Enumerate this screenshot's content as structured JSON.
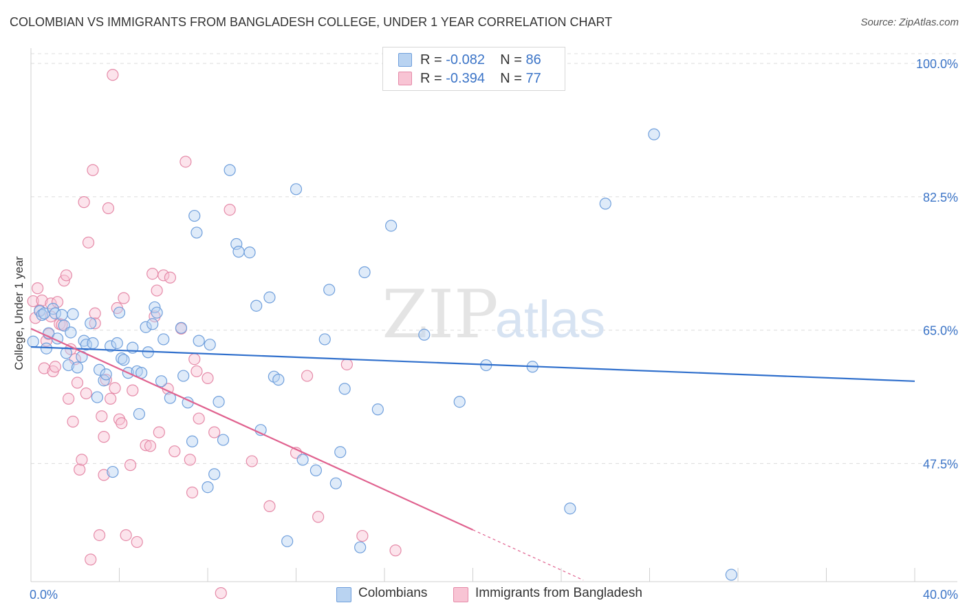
{
  "header": {
    "title": "COLOMBIAN VS IMMIGRANTS FROM BANGLADESH COLLEGE, UNDER 1 YEAR CORRELATION CHART",
    "source": "Source: ZipAtlas.com"
  },
  "stats": [
    {
      "r_label": "R =",
      "r_value": "-0.082",
      "n_label": "N =",
      "n_value": "86"
    },
    {
      "r_label": "R =",
      "r_value": "-0.394",
      "n_label": "N =",
      "n_value": "77"
    }
  ],
  "colors": {
    "blue_fill": "#b9d3f1",
    "blue_stroke": "#6f9fdc",
    "blue_line": "#2f6fcc",
    "pink_fill": "#f8c4d4",
    "pink_stroke": "#e58aa8",
    "pink_line": "#e0628f",
    "grid": "#dcdcdc",
    "axis_text": "#3b74c7"
  },
  "chart_data": {
    "type": "scatter",
    "xlabel": "",
    "ylabel": "College, Under 1 year",
    "xlim": [
      0,
      40
    ],
    "ylim": [
      32,
      102
    ],
    "x_tick_labels": [
      "0.0%",
      "40.0%"
    ],
    "y_ticks": [
      47.5,
      65.0,
      82.5,
      100.0
    ],
    "y_tick_labels": [
      "47.5%",
      "65.0%",
      "82.5%",
      "100.0%"
    ],
    "grid": true,
    "watermark": "ZIPatlas",
    "legend_position": "bottom-center",
    "series": [
      {
        "name": "Colombians",
        "color": "blue",
        "trend": {
          "x0": 0,
          "y0": 62.8,
          "x1": 40,
          "y1": 58.3
        },
        "points": [
          [
            0.1,
            63.5
          ],
          [
            0.4,
            67.5
          ],
          [
            0.5,
            67.0
          ],
          [
            0.6,
            67.2
          ],
          [
            0.7,
            62.6
          ],
          [
            0.8,
            64.6
          ],
          [
            1.0,
            67.8
          ],
          [
            1.1,
            67.2
          ],
          [
            1.2,
            63.9
          ],
          [
            1.4,
            67.0
          ],
          [
            1.5,
            65.6
          ],
          [
            1.6,
            62.0
          ],
          [
            1.7,
            60.4
          ],
          [
            1.8,
            64.7
          ],
          [
            1.9,
            67.1
          ],
          [
            2.1,
            60.1
          ],
          [
            2.3,
            61.5
          ],
          [
            2.4,
            63.6
          ],
          [
            2.5,
            63.1
          ],
          [
            2.7,
            65.9
          ],
          [
            2.8,
            63.3
          ],
          [
            3.0,
            56.2
          ],
          [
            3.1,
            59.8
          ],
          [
            3.3,
            58.4
          ],
          [
            3.4,
            59.2
          ],
          [
            3.6,
            62.9
          ],
          [
            3.7,
            46.4
          ],
          [
            3.9,
            63.3
          ],
          [
            4.0,
            67.3
          ],
          [
            4.1,
            61.3
          ],
          [
            4.2,
            61.1
          ],
          [
            4.4,
            59.4
          ],
          [
            4.6,
            62.7
          ],
          [
            4.8,
            59.6
          ],
          [
            4.9,
            54.0
          ],
          [
            5.0,
            59.4
          ],
          [
            5.2,
            65.4
          ],
          [
            5.3,
            62.1
          ],
          [
            5.5,
            65.8
          ],
          [
            5.6,
            68.0
          ],
          [
            5.7,
            67.3
          ],
          [
            5.9,
            58.3
          ],
          [
            6.0,
            63.8
          ],
          [
            6.3,
            56.1
          ],
          [
            6.8,
            65.3
          ],
          [
            6.9,
            59.0
          ],
          [
            7.1,
            55.5
          ],
          [
            7.3,
            50.4
          ],
          [
            7.4,
            80.0
          ],
          [
            7.5,
            77.8
          ],
          [
            7.6,
            63.6
          ],
          [
            8.0,
            44.4
          ],
          [
            8.1,
            63.1
          ],
          [
            8.3,
            46.1
          ],
          [
            8.5,
            55.6
          ],
          [
            8.7,
            50.6
          ],
          [
            9.0,
            86.0
          ],
          [
            9.3,
            76.3
          ],
          [
            9.4,
            75.3
          ],
          [
            9.9,
            75.2
          ],
          [
            10.2,
            68.2
          ],
          [
            10.4,
            51.9
          ],
          [
            10.8,
            69.3
          ],
          [
            11.0,
            58.9
          ],
          [
            11.2,
            58.5
          ],
          [
            11.6,
            37.3
          ],
          [
            12.0,
            83.5
          ],
          [
            12.3,
            48.0
          ],
          [
            12.9,
            46.6
          ],
          [
            13.3,
            63.8
          ],
          [
            13.5,
            70.3
          ],
          [
            13.8,
            44.9
          ],
          [
            14.0,
            49.0
          ],
          [
            14.2,
            57.3
          ],
          [
            14.9,
            36.5
          ],
          [
            15.1,
            72.6
          ],
          [
            15.7,
            54.6
          ],
          [
            16.3,
            78.7
          ],
          [
            17.8,
            64.4
          ],
          [
            19.4,
            55.6
          ],
          [
            20.6,
            60.4
          ],
          [
            22.7,
            60.2
          ],
          [
            24.4,
            41.6
          ],
          [
            26.0,
            81.6
          ],
          [
            28.2,
            90.7
          ],
          [
            31.7,
            32.9
          ]
        ]
      },
      {
        "name": "Immigrants from Bangladesh",
        "color": "pink",
        "trend": {
          "x0": 0,
          "y0": 65.2,
          "x1": 25,
          "y1": 32.2,
          "solid_until_x": 20.0
        },
        "points": [
          [
            0.1,
            68.8
          ],
          [
            0.2,
            66.6
          ],
          [
            0.3,
            70.5
          ],
          [
            0.4,
            67.6
          ],
          [
            0.5,
            68.9
          ],
          [
            0.6,
            60.0
          ],
          [
            0.7,
            63.6
          ],
          [
            0.8,
            64.5
          ],
          [
            0.9,
            68.5
          ],
          [
            1.0,
            59.6
          ],
          [
            1.1,
            60.2
          ],
          [
            1.3,
            65.8
          ],
          [
            1.4,
            65.7
          ],
          [
            1.5,
            71.5
          ],
          [
            1.6,
            72.2
          ],
          [
            1.7,
            56.0
          ],
          [
            1.8,
            62.5
          ],
          [
            1.9,
            53.0
          ],
          [
            2.0,
            61.2
          ],
          [
            2.1,
            58.1
          ],
          [
            2.2,
            46.7
          ],
          [
            2.3,
            48.0
          ],
          [
            2.4,
            81.8
          ],
          [
            2.5,
            56.7
          ],
          [
            2.6,
            76.5
          ],
          [
            2.7,
            34.9
          ],
          [
            2.8,
            86.0
          ],
          [
            2.9,
            65.9
          ],
          [
            3.1,
            38.1
          ],
          [
            3.2,
            53.7
          ],
          [
            3.3,
            46.0
          ],
          [
            3.4,
            58.5
          ],
          [
            3.5,
            81.0
          ],
          [
            3.6,
            56.0
          ],
          [
            3.7,
            98.5
          ],
          [
            3.8,
            57.4
          ],
          [
            3.9,
            67.9
          ],
          [
            4.0,
            53.3
          ],
          [
            4.1,
            52.8
          ],
          [
            4.2,
            69.2
          ],
          [
            4.3,
            38.1
          ],
          [
            4.5,
            47.3
          ],
          [
            4.6,
            57.1
          ],
          [
            4.8,
            37.2
          ],
          [
            5.2,
            49.9
          ],
          [
            5.4,
            49.8
          ],
          [
            5.5,
            72.4
          ],
          [
            5.6,
            66.8
          ],
          [
            5.7,
            70.2
          ],
          [
            5.8,
            51.6
          ],
          [
            6.0,
            72.2
          ],
          [
            6.2,
            57.3
          ],
          [
            6.3,
            71.9
          ],
          [
            6.5,
            49.1
          ],
          [
            7.0,
            87.1
          ],
          [
            7.2,
            48.0
          ],
          [
            7.3,
            43.7
          ],
          [
            7.4,
            61.2
          ],
          [
            7.5,
            59.6
          ],
          [
            7.6,
            53.4
          ],
          [
            8.0,
            58.7
          ],
          [
            8.3,
            51.6
          ],
          [
            8.6,
            30.5
          ],
          [
            9.0,
            80.8
          ],
          [
            10.0,
            47.8
          ],
          [
            10.8,
            41.9
          ],
          [
            12.0,
            48.9
          ],
          [
            12.5,
            59.0
          ],
          [
            13.0,
            40.5
          ],
          [
            14.3,
            60.5
          ],
          [
            15.0,
            38.0
          ],
          [
            16.5,
            36.1
          ],
          [
            3.3,
            51.0
          ],
          [
            1.2,
            68.7
          ],
          [
            0.9,
            66.8
          ],
          [
            2.9,
            67.2
          ],
          [
            6.8,
            65.2
          ]
        ]
      }
    ]
  }
}
